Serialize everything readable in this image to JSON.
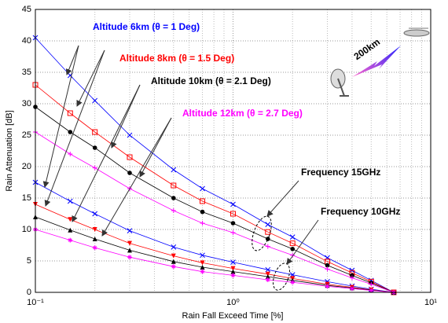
{
  "chart_data": {
    "type": "scatter",
    "x_label": "Rain Fall Exceed Time [%]",
    "y_label": "Rain Attenuation [dB]",
    "log_x": true,
    "grid": true,
    "xlim": [
      0.1,
      10
    ],
    "ylim": [
      0,
      45
    ],
    "xticks": [
      {
        "value": 0.1,
        "label": "10⁻¹"
      },
      {
        "value": 1,
        "label": "10⁰"
      },
      {
        "value": 10,
        "label": "10¹"
      }
    ],
    "yticks": [
      0,
      5,
      10,
      15,
      20,
      25,
      30,
      35,
      40,
      45
    ],
    "x": [
      0.1,
      0.15,
      0.2,
      0.3,
      0.5,
      0.7,
      1,
      1.5,
      2,
      3,
      4,
      5,
      6.5
    ],
    "series": [
      {
        "color": "#0000ff",
        "marker": "x",
        "values": [
          40.5,
          34.5,
          30.5,
          25,
          19.5,
          16.5,
          14,
          10.8,
          8.8,
          5.5,
          3.5,
          1.9,
          0
        ]
      },
      {
        "color": "#ff0000",
        "marker": "square",
        "values": [
          33,
          28.5,
          25.5,
          21.5,
          17,
          14.5,
          12.5,
          9.6,
          7.8,
          4.9,
          3.1,
          1.7,
          0
        ]
      },
      {
        "color": "#000000",
        "marker": "dot",
        "values": [
          29.5,
          25.5,
          23,
          19,
          15,
          12.8,
          11,
          8.5,
          6.9,
          4.3,
          2.7,
          1.5,
          0
        ]
      },
      {
        "color": "#ff00ff",
        "marker": "plus",
        "values": [
          25.5,
          22,
          19.8,
          16.5,
          13,
          11,
          9.5,
          7.3,
          5.9,
          3.7,
          2.3,
          1.3,
          0
        ]
      },
      {
        "color": "#0000ff",
        "marker": "x",
        "values": [
          17.5,
          14.5,
          12.5,
          9.8,
          7.2,
          5.9,
          4.8,
          3.6,
          2.8,
          1.7,
          1.0,
          0.5,
          0
        ]
      },
      {
        "color": "#ff0000",
        "marker": "triangle-down",
        "values": [
          14,
          11.6,
          10,
          7.8,
          5.8,
          4.7,
          3.8,
          2.9,
          2.2,
          1.3,
          0.8,
          0.4,
          0
        ]
      },
      {
        "color": "#000000",
        "marker": "triangle-up",
        "values": [
          12,
          9.9,
          8.5,
          6.7,
          4.9,
          4,
          3.3,
          2.5,
          1.9,
          1.1,
          0.7,
          0.35,
          0
        ]
      },
      {
        "color": "#ff00ff",
        "marker": "star",
        "values": [
          10,
          8.3,
          7.1,
          5.6,
          4.1,
          3.3,
          2.7,
          2,
          1.6,
          0.95,
          0.6,
          0.3,
          0
        ]
      }
    ],
    "annotations": [
      {
        "text": "Altitude 6km (θ = 1 Deg)",
        "color": "#0000ff"
      },
      {
        "text": "Altitude 8km (θ = 1.5 Deg)",
        "color": "#ff0000"
      },
      {
        "text": "Altitude 10km (θ = 2.1 Deg)",
        "color": "#000000"
      },
      {
        "text": "Altitude 12km (θ = 2.7 Deg)",
        "color": "#ff00ff"
      },
      {
        "text": "Frequency  15GHz",
        "color": "#000000"
      },
      {
        "text": "Frequency  10GHz",
        "color": "#000000"
      },
      {
        "text": "200km",
        "color": "#000000"
      }
    ]
  }
}
